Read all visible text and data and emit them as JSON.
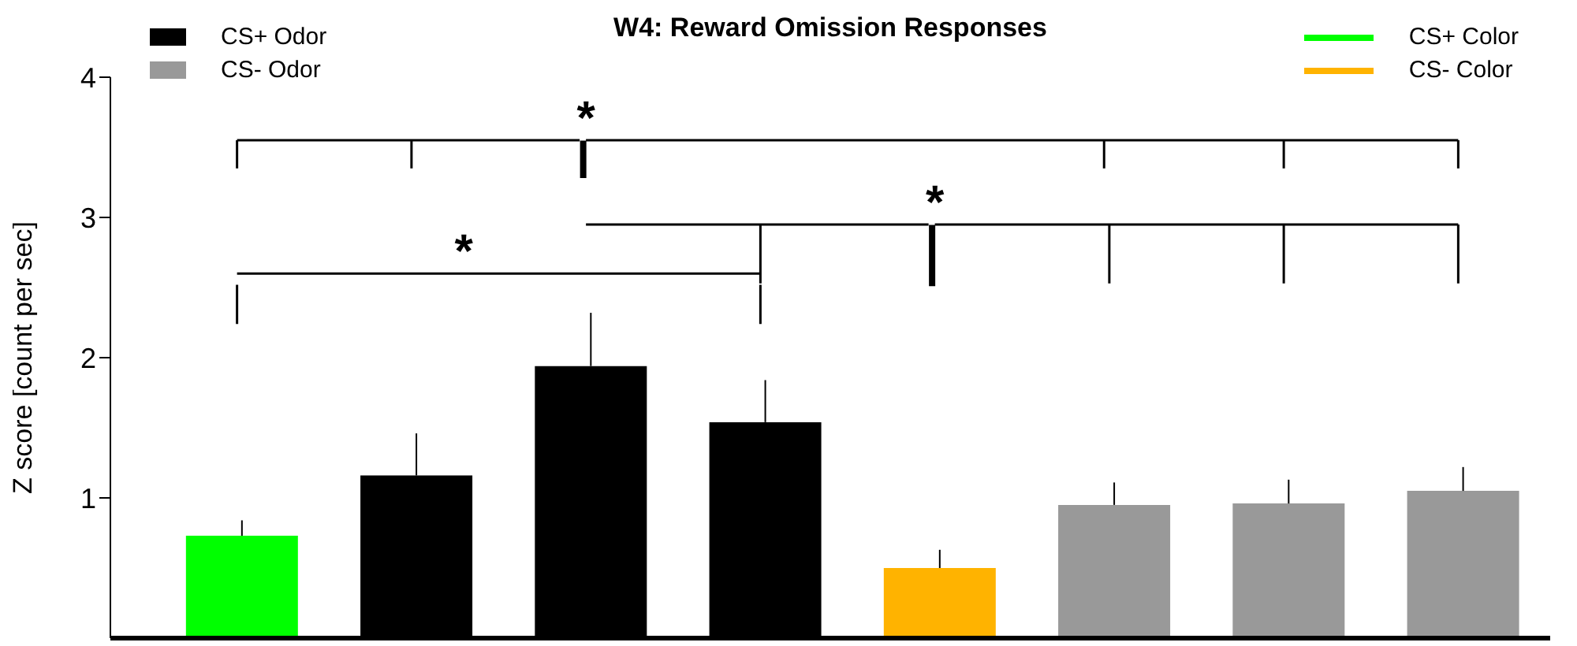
{
  "chart_data": {
    "type": "bar",
    "title": "W4: Reward Omission Responses",
    "ylabel": "Z score [count per sec]",
    "categories": [
      null,
      null,
      null,
      null,
      null,
      null,
      null,
      null
    ],
    "stacked": true,
    "series": [
      {
        "name": "CS+ Odor",
        "color": "#000000",
        "values": [
          null,
          1.16,
          1.94,
          1.54,
          null,
          null,
          null,
          null
        ],
        "errors": [
          null,
          [
            1.16,
            1.46
          ],
          [
            1.94,
            2.32
          ],
          [
            1.54,
            1.84
          ],
          null,
          null,
          null,
          null
        ]
      },
      {
        "name": "CS- Odor",
        "color": "#999999",
        "values": [
          null,
          null,
          null,
          null,
          null,
          0.95,
          0.96,
          1.05
        ],
        "errors": [
          null,
          null,
          null,
          null,
          null,
          [
            0.95,
            1.11
          ],
          [
            0.96,
            1.13
          ],
          [
            1.05,
            1.22
          ]
        ]
      },
      {
        "name": "CS+ Color",
        "color": "#00ff00",
        "values": [
          0.73,
          null,
          null,
          null,
          null,
          null,
          null,
          null
        ],
        "errors": [
          [
            0.73,
            0.84
          ],
          null,
          null,
          null,
          null,
          null,
          null,
          null
        ]
      },
      {
        "name": "CS- Color",
        "color": "#ffb300",
        "values": [
          null,
          null,
          null,
          null,
          0.5,
          null,
          null,
          null
        ],
        "errors": [
          null,
          null,
          null,
          null,
          [
            0.5,
            0.63
          ],
          null,
          null,
          null
        ]
      }
    ],
    "ylim": [
      0,
      4
    ],
    "yticks": [
      1,
      2,
      3,
      4
    ],
    "grid": false,
    "legend": "top",
    "annotations": [
      "*",
      "*",
      "*"
    ]
  }
}
